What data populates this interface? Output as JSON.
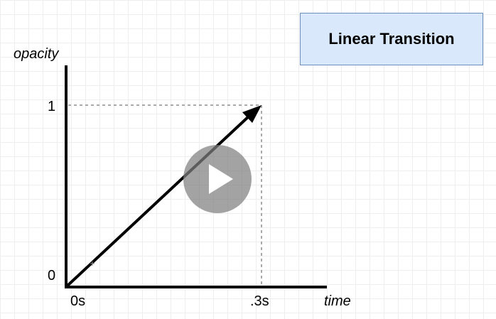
{
  "title": "Linear Transition",
  "axes": {
    "y_label": "opacity",
    "x_label": "time",
    "y_ticks": [
      "1",
      "0"
    ],
    "x_ticks": [
      "0s",
      ".3s"
    ]
  },
  "colors": {
    "title_fill": "#dae8fc",
    "title_border": "#6c8ebf",
    "axis": "#000000",
    "guide": "#555555",
    "play_overlay": "#808080"
  },
  "overlay": {
    "icon": "play-icon"
  }
}
